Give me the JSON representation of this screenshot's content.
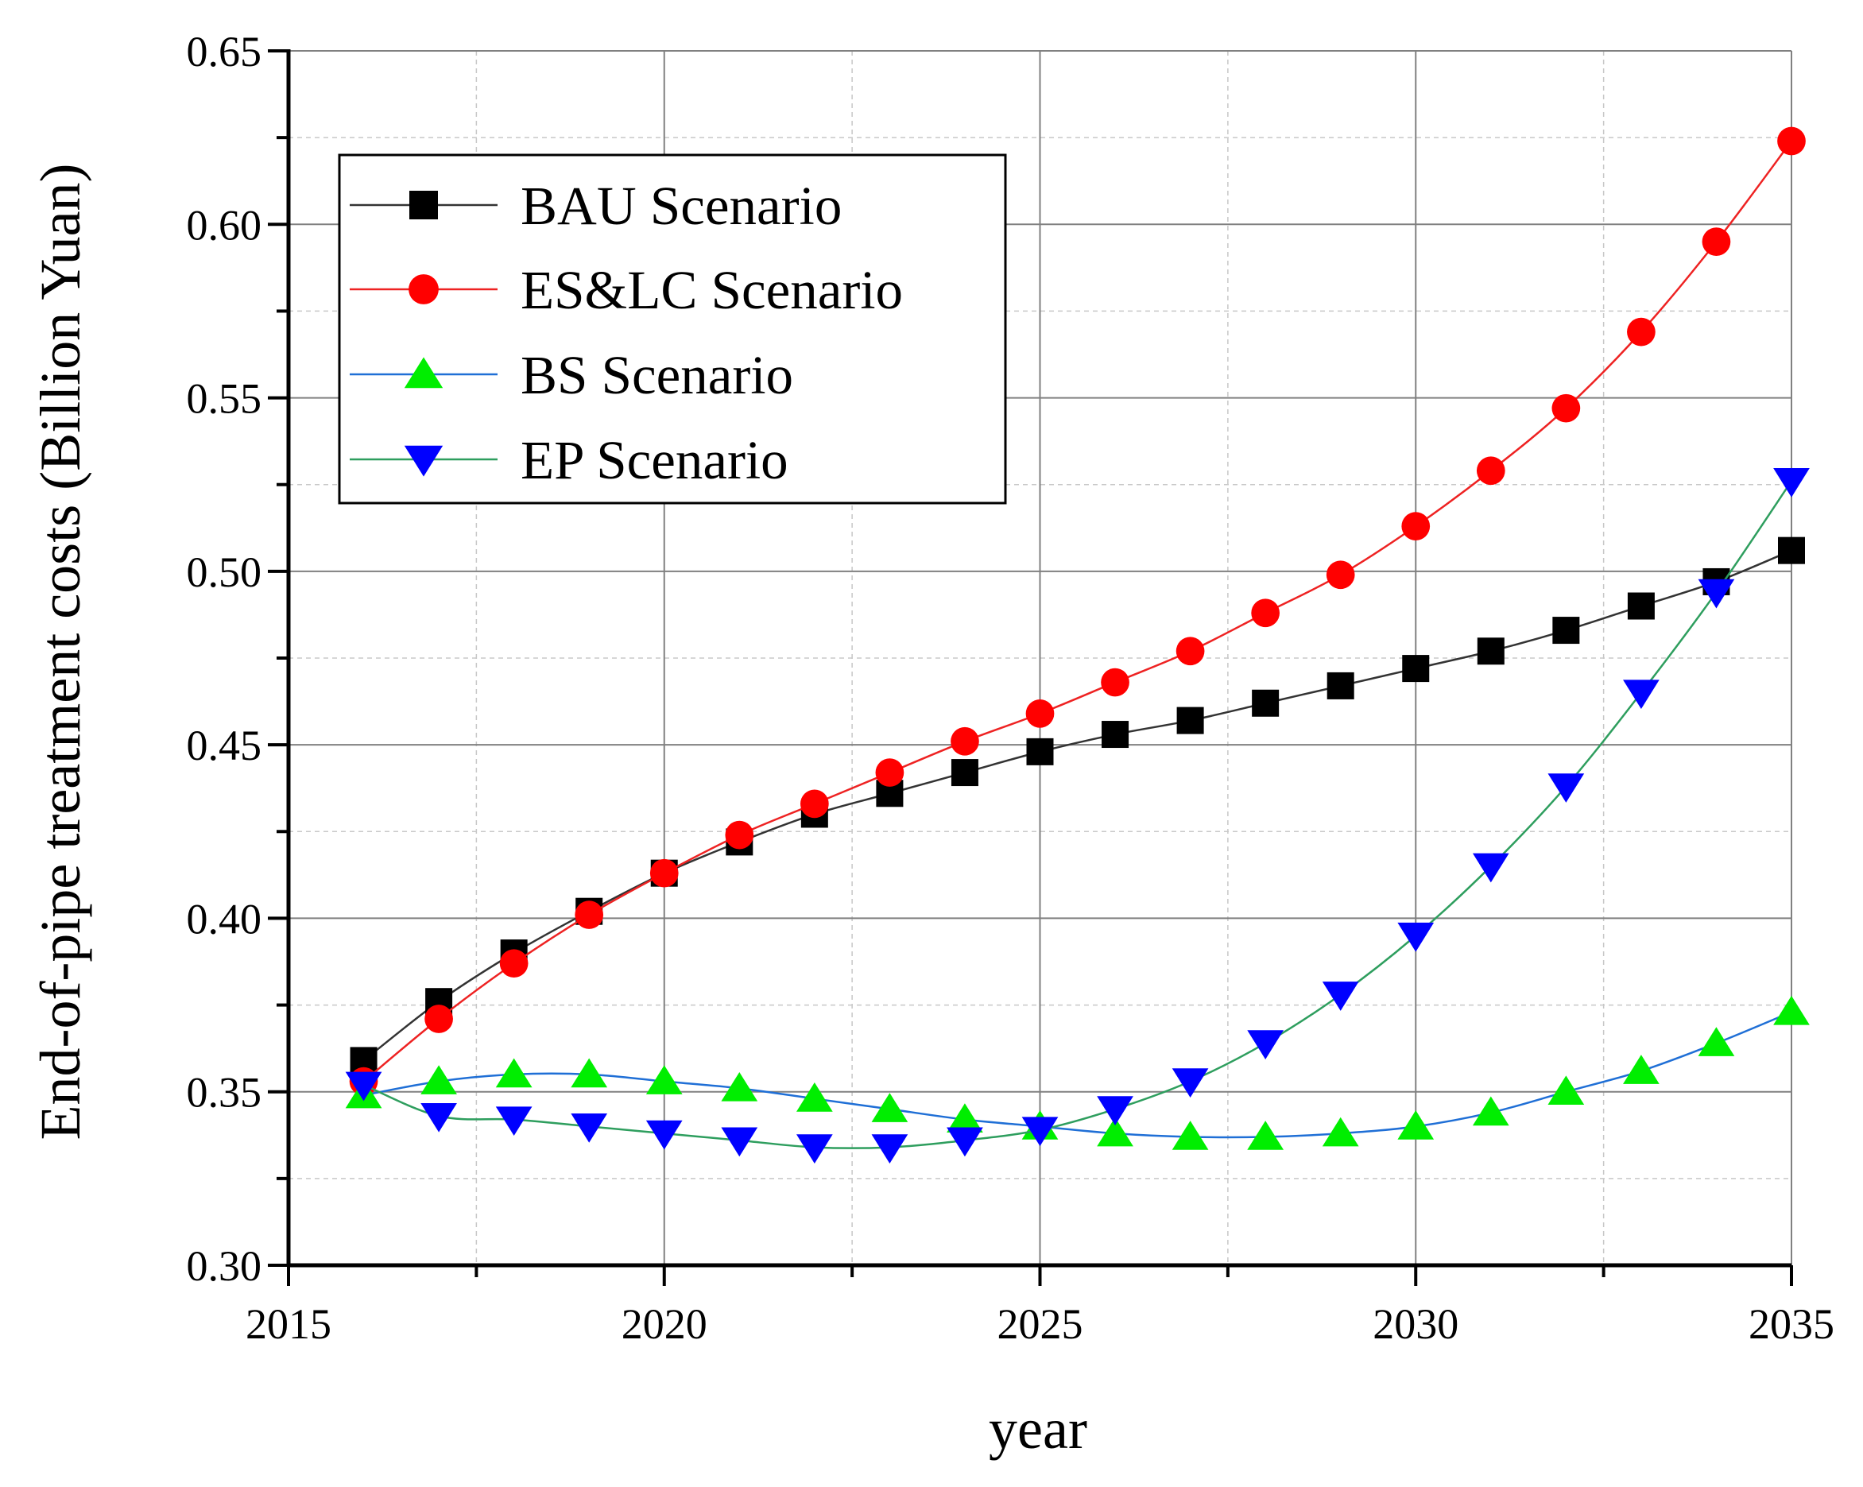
{
  "chart_data": {
    "type": "line",
    "title": "",
    "xlabel": "year",
    "ylabel": "End-of-pipe treatment costs (Billion Yuan)",
    "xlim": [
      2015,
      2035
    ],
    "ylim": [
      0.3,
      0.65
    ],
    "xticks": [
      2015,
      2020,
      2025,
      2030,
      2035
    ],
    "yticks": [
      0.3,
      0.35,
      0.4,
      0.45,
      0.5,
      0.55,
      0.6,
      0.65
    ],
    "xtick_labels": [
      "2015",
      "2020",
      "2025",
      "2030",
      "2035"
    ],
    "ytick_labels": [
      "0.30",
      "0.35",
      "0.40",
      "0.45",
      "0.50",
      "0.55",
      "0.60",
      "0.65"
    ],
    "grid": true,
    "legend_position": "top-left",
    "x": [
      2016,
      2017,
      2018,
      2019,
      2020,
      2021,
      2022,
      2023,
      2024,
      2025,
      2026,
      2027,
      2028,
      2029,
      2030,
      2031,
      2032,
      2033,
      2034,
      2035
    ],
    "series": [
      {
        "name": "BAU Scenario",
        "color": "#000000",
        "line_color": "#333333",
        "marker": "square",
        "values": [
          0.359,
          0.376,
          0.39,
          0.402,
          0.413,
          0.422,
          0.43,
          0.436,
          0.442,
          0.448,
          0.453,
          0.457,
          0.462,
          0.467,
          0.472,
          0.477,
          0.483,
          0.49,
          0.497,
          0.506
        ]
      },
      {
        "name": "ES&LC Scenario",
        "color": "#ff0000",
        "line_color": "#ee2222",
        "marker": "circle",
        "values": [
          0.353,
          0.371,
          0.387,
          0.401,
          0.413,
          0.424,
          0.433,
          0.442,
          0.451,
          0.459,
          0.468,
          0.477,
          0.488,
          0.499,
          0.513,
          0.529,
          0.547,
          0.569,
          0.595,
          0.624
        ]
      },
      {
        "name": "BS Scenario",
        "color": "#00ee00",
        "line_color": "#1f6fd6",
        "marker": "triangle-up",
        "values": [
          0.349,
          0.353,
          0.355,
          0.355,
          0.353,
          0.351,
          0.348,
          0.345,
          0.342,
          0.34,
          0.338,
          0.337,
          0.337,
          0.338,
          0.34,
          0.344,
          0.35,
          0.356,
          0.364,
          0.373
        ]
      },
      {
        "name": "EP Scenario",
        "color": "#0000ff",
        "line_color": "#2e9e5e",
        "marker": "triangle-down",
        "values": [
          0.352,
          0.343,
          0.342,
          0.34,
          0.338,
          0.336,
          0.334,
          0.334,
          0.336,
          0.339,
          0.345,
          0.353,
          0.364,
          0.378,
          0.395,
          0.415,
          0.438,
          0.465,
          0.494,
          0.526
        ]
      }
    ]
  }
}
